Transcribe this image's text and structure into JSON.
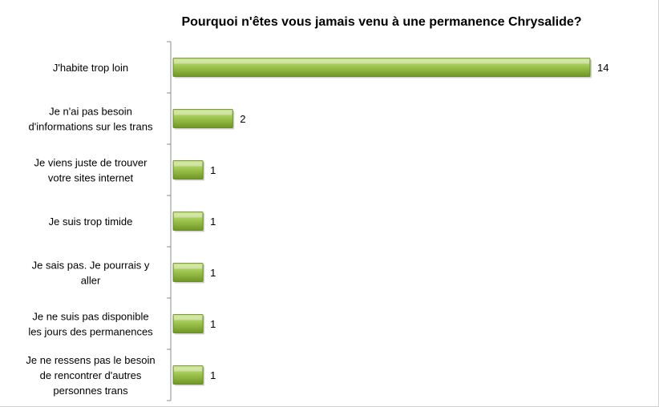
{
  "chart_data": {
    "type": "bar",
    "orientation": "horizontal",
    "title": "Pourquoi n'êtes vous jamais venu à une permanence Chrysalide?",
    "categories": [
      [
        "J'habite trop loin"
      ],
      [
        "Je n'ai pas besoin",
        "d'informations sur les trans"
      ],
      [
        "Je viens juste de trouver",
        "votre sites internet"
      ],
      [
        "Je suis trop timide"
      ],
      [
        "Je sais pas. Je pourrais y",
        "aller"
      ],
      [
        "Je ne suis pas disponible",
        "les jours des permanences"
      ],
      [
        "Je ne ressens pas le besoin",
        "de rencontrer d'autres",
        "personnes trans"
      ]
    ],
    "values": [
      14,
      2,
      1,
      1,
      1,
      1,
      1
    ],
    "data_labels": [
      "14",
      "2",
      "1",
      "1",
      "1",
      "1",
      "1"
    ],
    "xlim": [
      0,
      14
    ],
    "grid": false,
    "legend": "none",
    "colors": {
      "bar_light": "#c9e58a",
      "bar_mid": "#9fc64e",
      "bar_dark": "#6f9527",
      "bar_stroke": "#5b7d1c",
      "axis": "#8c8c8c"
    }
  }
}
